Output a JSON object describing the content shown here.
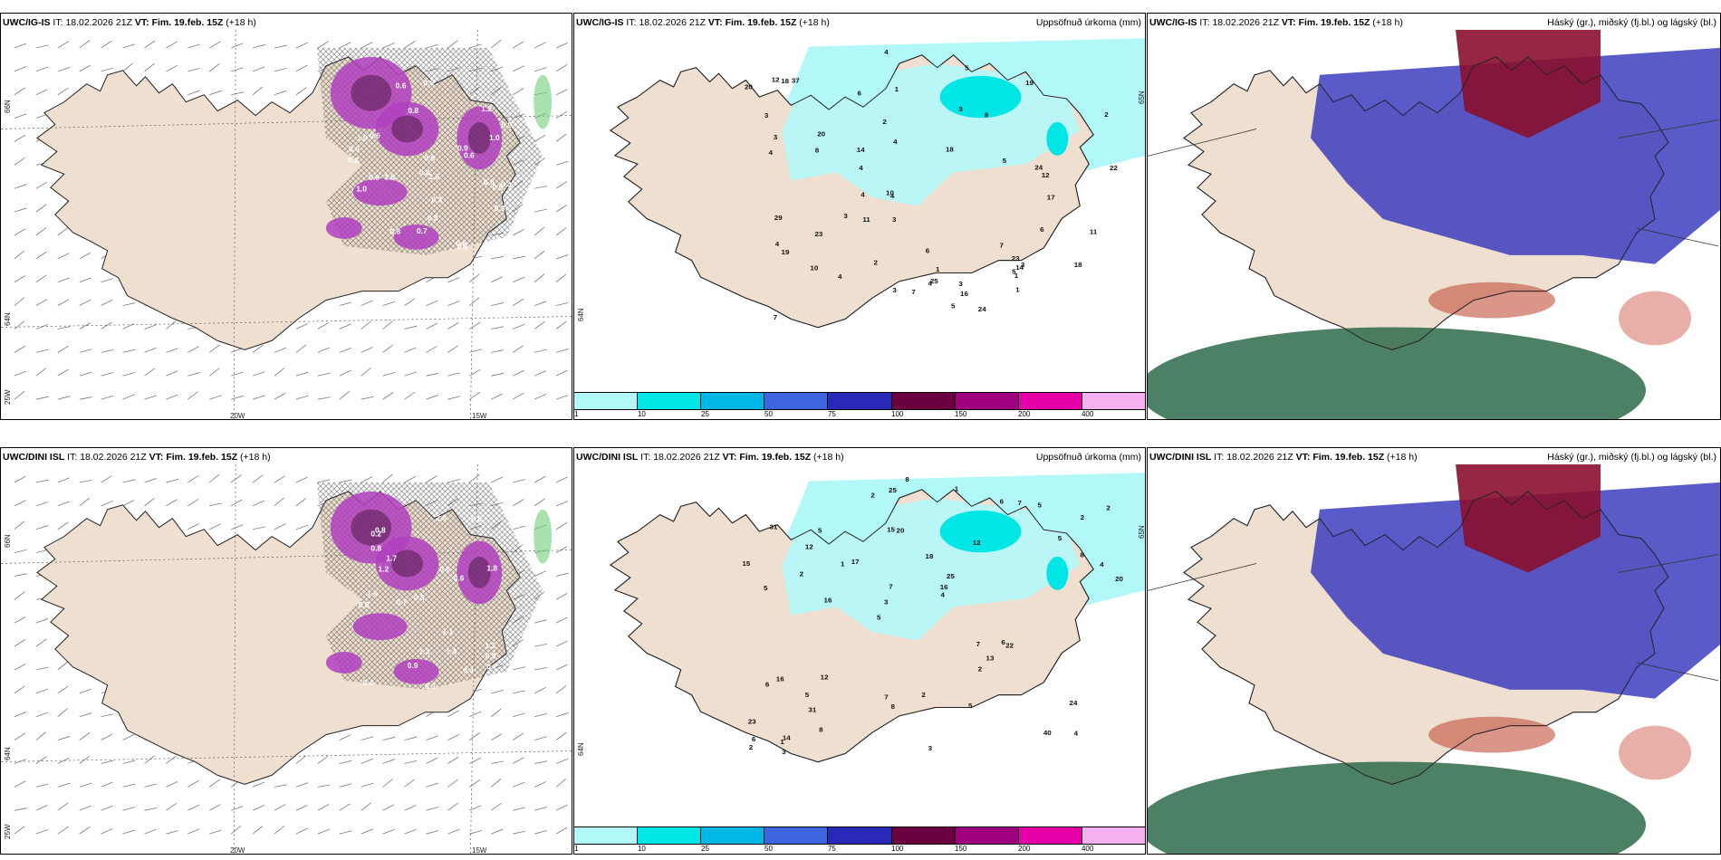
{
  "rows": [
    {
      "model": "UWC/IG-IS",
      "it_label": "IT:",
      "it": "18.02.2026 21Z",
      "vt_label": "VT:",
      "vt": "Fim. 19.feb. 15Z",
      "lead": "(+18 h)",
      "precip_title": "Uppsöfnuð úrkoma (mm)",
      "cloud_title": "Háský (gr.), miðský (fj.bl.) og lágský (bl.)",
      "lat_labels": [
        "66N",
        "64N",
        "25W"
      ],
      "lon_labels": [
        "20W",
        "15W"
      ],
      "precip_right_lats": [
        "65N",
        "64N"
      ],
      "wind_values": [
        "0.3",
        "0.6",
        "1.2",
        "1.0",
        "0.8",
        "0.6",
        "0.9",
        "0.9",
        "1.6",
        "0.7",
        "0.6",
        "0.9",
        "0.6",
        "0.5",
        "0.3",
        "1.0",
        "1.0",
        "0.6",
        "0.7",
        "0.6",
        "0.8",
        "0.8",
        "0.6",
        "1.8",
        "0.6",
        "0.4",
        "0.8",
        "0.8",
        "0.3"
      ],
      "precip_values": [
        "3",
        "1",
        "18",
        "20",
        "22",
        "19",
        "25",
        "29",
        "24",
        "20",
        "23",
        "18",
        "7",
        "24",
        "19",
        "16",
        "23",
        "14",
        "11",
        "12",
        "37",
        "17",
        "8",
        "4",
        "3",
        "4",
        "5",
        "5",
        "6",
        "14",
        "12",
        "7",
        "6",
        "6",
        "5",
        "2",
        "18",
        "3",
        "4",
        "3",
        "7",
        "10",
        "4",
        "4",
        "4",
        "3",
        "3",
        "3",
        "4",
        "1",
        "4",
        "3",
        "10",
        "5",
        "2",
        "2",
        "11",
        "4",
        "8",
        "1",
        "1"
      ]
    },
    {
      "model": "UWC/DINI ISL",
      "it_label": "IT:",
      "it": "18.02.2026 21Z",
      "vt_label": "VT:",
      "vt": "Fim. 19.feb. 15Z",
      "lead": "(+18 h)",
      "precip_title": "Uppsöfnuð úrkoma (mm)",
      "cloud_title": "Háský (gr.), miðský (fj.bl.) og lágský (bl.)",
      "lat_labels": [
        "66N",
        "64N",
        "25W"
      ],
      "lon_labels": [
        "20W",
        "15W"
      ],
      "precip_right_lats": [
        "65N",
        "64N"
      ],
      "wind_values": [
        "1.4",
        "1.6",
        "1.8",
        "0.9",
        "0.7",
        "0.8",
        "1.7",
        "0.6",
        "0.3",
        "0.6",
        "1.2",
        "0.4",
        "0.6",
        "2.6",
        "0.8",
        "1.3",
        "0.8",
        "0.4",
        "1.2",
        "0.8",
        "0.7",
        "0.9",
        "0.2",
        "1.1"
      ],
      "precip_values": [
        "4",
        "5",
        "2",
        "5",
        "12",
        "14",
        "15",
        "18",
        "16",
        "17",
        "23",
        "31",
        "20",
        "25",
        "22",
        "31",
        "25",
        "20",
        "7",
        "8",
        "3",
        "7",
        "7",
        "5",
        "6",
        "12",
        "40",
        "24",
        "6",
        "3",
        "1",
        "2",
        "2",
        "8",
        "4",
        "16",
        "6",
        "8",
        "4",
        "6",
        "5",
        "2",
        "13",
        "5",
        "5",
        "3",
        "2",
        "2",
        "5",
        "8",
        "16",
        "15",
        "12",
        "7",
        "1",
        "1",
        "2"
      ]
    }
  ],
  "colorbar": {
    "ticks": [
      "1",
      "10",
      "25",
      "50",
      "75",
      "100",
      "150",
      "200",
      "400"
    ],
    "colors": [
      "#b3f8f8",
      "#00e5e5",
      "#00b8e6",
      "#3f64e0",
      "#2929b8",
      "#6a0040",
      "#a00080",
      "#e600a8",
      "#f5b0f0"
    ]
  },
  "colors": {
    "land": "#efdfd0",
    "sea": "#ffffff",
    "precip_light": "#b3f8f8",
    "precip_mid": "#00e5e5",
    "wind_purple": "#b040c0",
    "wind_dark": "#5a2050",
    "high_cloud": "#8a1030",
    "mid_cloud": "#3d3dc0",
    "low_cloud": "#2e6b4a"
  }
}
